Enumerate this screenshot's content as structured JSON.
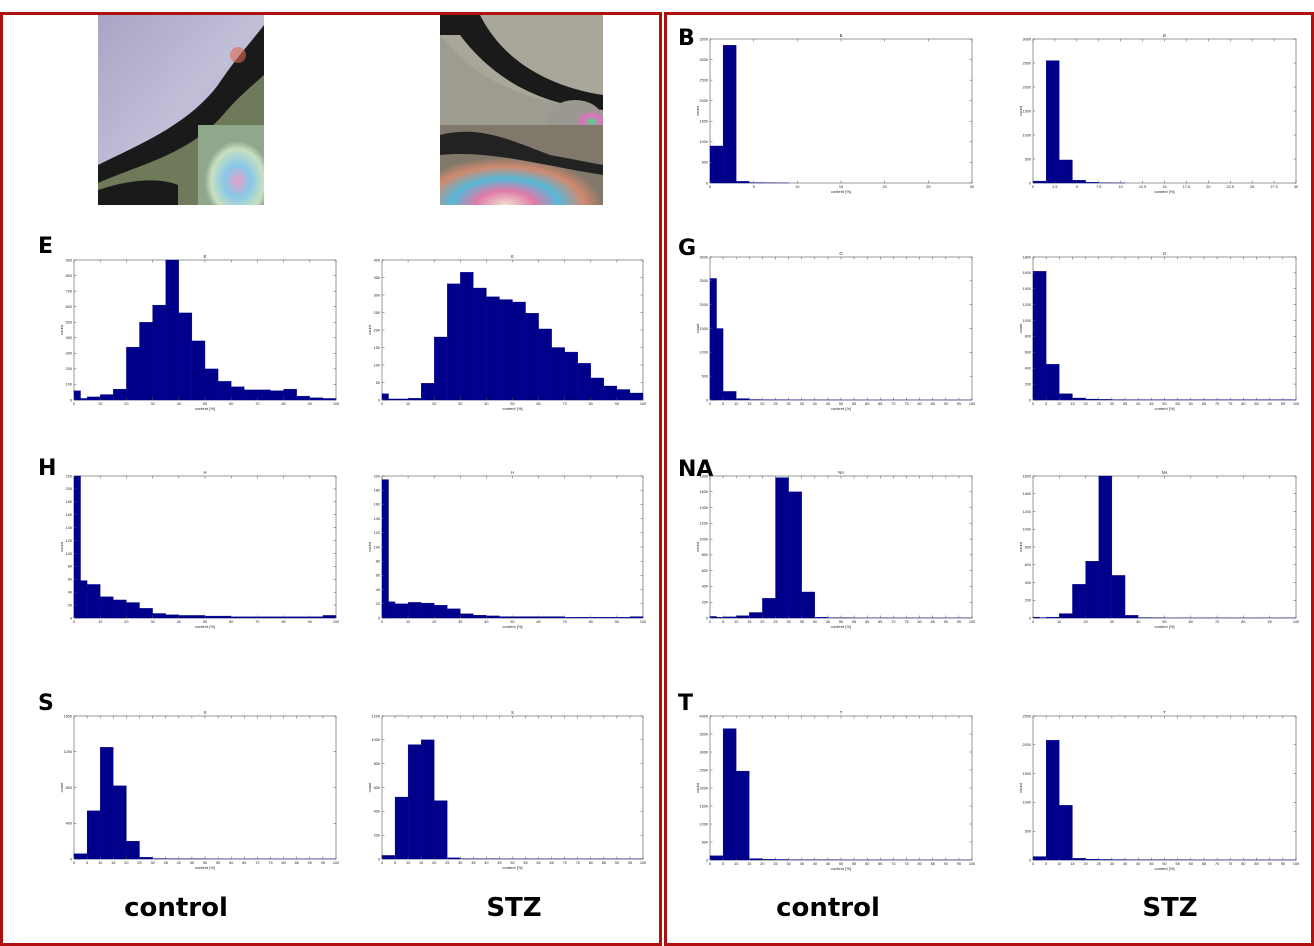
{
  "colors": {
    "bar": "#00008b",
    "frame": "#b01010"
  },
  "column_labels": {
    "left_control": "control",
    "left_stz": "STZ",
    "right_control": "control",
    "right_stz": "STZ"
  },
  "panel_letters": [
    "B",
    "E",
    "G",
    "H",
    "NA",
    "S",
    "T"
  ],
  "chart_data": [
    {
      "id": "E-control",
      "letter": "E",
      "type": "bar",
      "title": "E",
      "xlabel": "content [%]",
      "ylabel": "count",
      "xlim": [
        0,
        100
      ],
      "xticks": [
        0,
        10,
        20,
        30,
        40,
        50,
        60,
        70,
        80,
        90,
        100
      ],
      "ylim": [
        0,
        900
      ],
      "yticks": [
        0,
        100,
        200,
        300,
        400,
        500,
        600,
        700,
        800,
        900
      ],
      "bin_width": 5,
      "bins": [
        0,
        2.5,
        7.5,
        12.5,
        17.5,
        22.5,
        27.5,
        32.5,
        37.5,
        42.5,
        47.5,
        52.5,
        57.5,
        62.5,
        67.5,
        72.5,
        77.5,
        82.5,
        87.5,
        92.5,
        97.5
      ],
      "values": [
        60,
        10,
        20,
        35,
        70,
        340,
        500,
        610,
        900,
        560,
        380,
        200,
        120,
        85,
        65,
        65,
        60,
        70,
        25,
        15,
        10
      ]
    },
    {
      "id": "E-stz",
      "letter": "E",
      "type": "bar",
      "title": "E",
      "xlabel": "content [%]",
      "ylabel": "count",
      "xlim": [
        0,
        100
      ],
      "xticks": [
        0,
        10,
        20,
        30,
        40,
        50,
        60,
        70,
        80,
        90,
        100
      ],
      "ylim": [
        0,
        400
      ],
      "yticks": [
        0,
        50,
        100,
        150,
        200,
        250,
        300,
        350,
        400
      ],
      "bin_width": 5,
      "bins": [
        0,
        2.5,
        7.5,
        12.5,
        17.5,
        22.5,
        27.5,
        32.5,
        37.5,
        42.5,
        47.5,
        52.5,
        57.5,
        62.5,
        67.5,
        72.5,
        77.5,
        82.5,
        87.5,
        92.5,
        97.5
      ],
      "values": [
        18,
        3,
        3,
        5,
        48,
        180,
        332,
        365,
        320,
        295,
        287,
        280,
        248,
        203,
        150,
        137,
        105,
        63,
        40,
        30,
        20
      ]
    },
    {
      "id": "H-control",
      "letter": "H",
      "type": "bar",
      "title": "H",
      "xlabel": "content [%]",
      "ylabel": "count",
      "xlim": [
        0,
        100
      ],
      "xticks": [
        0,
        10,
        20,
        30,
        40,
        50,
        60,
        70,
        80,
        90,
        100
      ],
      "ylim": [
        0,
        220
      ],
      "yticks": [
        0,
        20,
        40,
        60,
        80,
        100,
        120,
        140,
        160,
        180,
        200,
        220
      ],
      "bin_width": 5,
      "bins": [
        0,
        2.5,
        7.5,
        12.5,
        17.5,
        22.5,
        27.5,
        32.5,
        37.5,
        42.5,
        47.5,
        52.5,
        57.5,
        62.5,
        67.5,
        72.5,
        77.5,
        82.5,
        87.5,
        92.5,
        97.5
      ],
      "values": [
        220,
        58,
        52,
        33,
        28,
        24,
        15,
        7,
        5,
        4,
        4,
        3,
        3,
        2,
        2,
        2,
        2,
        2,
        2,
        2,
        4
      ]
    },
    {
      "id": "H-stz",
      "letter": "H",
      "type": "bar",
      "title": "H",
      "xlabel": "content [%]",
      "ylabel": "count",
      "xlim": [
        0,
        100
      ],
      "xticks": [
        0,
        10,
        20,
        30,
        40,
        50,
        60,
        70,
        80,
        90,
        100
      ],
      "ylim": [
        0,
        200
      ],
      "yticks": [
        0,
        20,
        40,
        60,
        80,
        100,
        120,
        140,
        160,
        180,
        200
      ],
      "bin_width": 5,
      "bins": [
        0,
        2.5,
        7.5,
        12.5,
        17.5,
        22.5,
        27.5,
        32.5,
        37.5,
        42.5,
        47.5,
        52.5,
        57.5,
        62.5,
        67.5,
        72.5,
        77.5,
        82.5,
        87.5,
        92.5,
        97.5
      ],
      "values": [
        195,
        23,
        20,
        22,
        21,
        18,
        13,
        6,
        4,
        3,
        2,
        2,
        2,
        2,
        2,
        1,
        1,
        1,
        1,
        1,
        2
      ]
    },
    {
      "id": "S-control",
      "letter": "S",
      "type": "bar",
      "title": "S",
      "xlabel": "content [%]",
      "ylabel": "count",
      "xlim": [
        0,
        100
      ],
      "xticks": [
        0,
        5,
        10,
        15,
        20,
        25,
        30,
        35,
        40,
        45,
        50,
        55,
        60,
        65,
        70,
        75,
        80,
        85,
        90,
        95,
        100
      ],
      "ylim": [
        0,
        1600
      ],
      "yticks": [
        0,
        400,
        800,
        1200,
        1600
      ],
      "bin_width": 5,
      "bins": [
        0,
        2.5,
        7.5,
        12.5,
        17.5,
        22.5,
        27.5,
        32.5,
        37.5,
        42.5,
        47.5,
        52.5,
        57.5,
        62.5,
        67.5,
        72.5,
        77.5,
        82.5,
        87.5,
        92.5,
        97.5
      ],
      "values": [
        40,
        60,
        540,
        1250,
        820,
        200,
        20,
        5,
        3,
        2,
        2,
        1,
        1,
        1,
        1,
        1,
        1,
        1,
        1,
        1,
        1
      ]
    },
    {
      "id": "S-stz",
      "letter": "S",
      "type": "bar",
      "title": "S",
      "xlabel": "content [%]",
      "ylabel": "count",
      "xlim": [
        0,
        100
      ],
      "xticks": [
        0,
        5,
        10,
        15,
        20,
        25,
        30,
        35,
        40,
        45,
        50,
        55,
        60,
        65,
        70,
        75,
        80,
        85,
        90,
        95,
        100
      ],
      "ylim": [
        0,
        1200
      ],
      "yticks": [
        0,
        200,
        400,
        600,
        800,
        1000,
        1200
      ],
      "bin_width": 5,
      "bins": [
        0,
        2.5,
        7.5,
        12.5,
        17.5,
        22.5,
        27.5,
        32.5,
        37.5,
        42.5,
        47.5,
        52.5,
        57.5,
        62.5,
        67.5,
        72.5,
        77.5,
        82.5,
        87.5,
        92.5,
        97.5
      ],
      "values": [
        20,
        30,
        520,
        960,
        1000,
        490,
        10,
        3,
        2,
        2,
        1,
        1,
        1,
        1,
        1,
        1,
        1,
        1,
        1,
        1,
        1
      ]
    },
    {
      "id": "B-control",
      "letter": "B",
      "type": "bar",
      "title": "B",
      "xlabel": "content [%]",
      "ylabel": "count",
      "xlim": [
        0,
        30
      ],
      "xticks": [
        0,
        5,
        10,
        15,
        20,
        25,
        30
      ],
      "ylim": [
        0,
        3500
      ],
      "yticks": [
        0,
        500,
        1000,
        1500,
        2000,
        2500,
        3000,
        3500
      ],
      "bin_width": 1.5,
      "bins": [
        0.75,
        2.25,
        3.75,
        5.25,
        6.75,
        8.25
      ],
      "values": [
        900,
        3350,
        40,
        10,
        5,
        3
      ]
    },
    {
      "id": "B-stz",
      "letter": "B",
      "type": "bar",
      "title": "B",
      "xlabel": "content [%]",
      "ylabel": "count",
      "xlim": [
        0,
        30
      ],
      "xticks": [
        0,
        2.5,
        5,
        7.5,
        10,
        12.5,
        15,
        17.5,
        20,
        22.5,
        25,
        27.5,
        30
      ],
      "ylim": [
        0,
        3000
      ],
      "yticks": [
        0,
        500,
        1000,
        1500,
        2000,
        2500,
        3000
      ],
      "bin_width": 1.5,
      "bins": [
        0.75,
        2.25,
        3.75,
        5.25,
        6.75,
        8.25,
        9.75
      ],
      "values": [
        40,
        2550,
        480,
        60,
        15,
        5,
        3
      ]
    },
    {
      "id": "G-control",
      "letter": "G",
      "type": "bar",
      "title": "G",
      "xlabel": "content [%]",
      "ylabel": "count",
      "xlim": [
        0,
        100
      ],
      "xticks": [
        0,
        5,
        10,
        15,
        20,
        25,
        30,
        35,
        40,
        45,
        50,
        55,
        60,
        65,
        70,
        75,
        80,
        85,
        90,
        95,
        100
      ],
      "ylim": [
        0,
        3000
      ],
      "yticks": [
        0,
        500,
        1000,
        1500,
        2000,
        2500,
        3000
      ],
      "bin_width": 5,
      "bins": [
        0,
        2.5,
        7.5,
        12.5,
        17.5,
        22.5,
        27.5,
        32.5,
        37.5,
        42.5,
        47.5,
        52.5,
        57.5,
        62.5,
        67.5,
        72.5,
        77.5,
        82.5,
        87.5,
        92.5,
        97.5
      ],
      "values": [
        2550,
        1500,
        180,
        30,
        10,
        5,
        5,
        3,
        2,
        2,
        2,
        1,
        1,
        1,
        1,
        1,
        1,
        1,
        1,
        1,
        1
      ]
    },
    {
      "id": "G-stz",
      "letter": "G",
      "type": "bar",
      "title": "G",
      "xlabel": "content [%]",
      "ylabel": "count",
      "xlim": [
        0,
        100
      ],
      "xticks": [
        0,
        5,
        10,
        15,
        20,
        25,
        30,
        35,
        40,
        45,
        50,
        55,
        60,
        65,
        70,
        75,
        80,
        85,
        90,
        95,
        100
      ],
      "ylim": [
        0,
        1800
      ],
      "yticks": [
        0,
        200,
        400,
        600,
        800,
        1000,
        1200,
        1400,
        1600,
        1800
      ],
      "bin_width": 5,
      "bins": [
        0,
        2.5,
        7.5,
        12.5,
        17.5,
        22.5,
        27.5,
        32.5,
        37.5,
        42.5,
        47.5,
        52.5,
        57.5,
        62.5,
        67.5,
        72.5,
        77.5,
        82.5,
        87.5,
        92.5,
        97.5
      ],
      "values": [
        850,
        1620,
        450,
        80,
        25,
        12,
        8,
        5,
        4,
        3,
        3,
        2,
        2,
        2,
        2,
        2,
        2,
        2,
        2,
        2,
        2
      ]
    },
    {
      "id": "NA-control",
      "letter": "NA",
      "type": "bar",
      "title": "NA",
      "xlabel": "content [%]",
      "ylabel": "count",
      "xlim": [
        0,
        100
      ],
      "xticks": [
        0,
        5,
        10,
        15,
        20,
        25,
        30,
        35,
        40,
        45,
        50,
        55,
        60,
        65,
        70,
        75,
        80,
        85,
        90,
        95,
        100
      ],
      "ylim": [
        0,
        1800
      ],
      "yticks": [
        0,
        200,
        400,
        600,
        800,
        1000,
        1200,
        1400,
        1600,
        1800
      ],
      "bin_width": 5,
      "bins": [
        0,
        2.5,
        7.5,
        12.5,
        17.5,
        22.5,
        27.5,
        32.5,
        37.5,
        42.5,
        47.5,
        52.5,
        57.5,
        62.5,
        67.5,
        72.5,
        77.5,
        82.5,
        87.5,
        92.5,
        97.5
      ],
      "values": [
        20,
        10,
        15,
        30,
        70,
        250,
        1780,
        1600,
        330,
        10,
        3,
        2,
        1,
        1,
        1,
        1,
        1,
        1,
        1,
        1,
        1
      ]
    },
    {
      "id": "NA-stz",
      "letter": "NA",
      "type": "bar",
      "title": "NA",
      "xlabel": "content [%]",
      "ylabel": "count",
      "xlim": [
        0,
        100
      ],
      "xticks": [
        0,
        10,
        20,
        30,
        40,
        50,
        60,
        70,
        80,
        90,
        100
      ],
      "ylim": [
        0,
        1600
      ],
      "yticks": [
        0,
        200,
        400,
        600,
        800,
        1000,
        1200,
        1400,
        1600
      ],
      "bin_width": 5,
      "bins": [
        0,
        2.5,
        7.5,
        12.5,
        17.5,
        22.5,
        27.5,
        32.5,
        37.5,
        42.5,
        47.5,
        52.5,
        57.5,
        62.5,
        67.5,
        72.5,
        77.5,
        82.5,
        87.5,
        92.5,
        97.5
      ],
      "values": [
        10,
        5,
        10,
        50,
        380,
        640,
        1600,
        480,
        30,
        5,
        2,
        1,
        1,
        1,
        1,
        1,
        1,
        1,
        1,
        1,
        1
      ]
    },
    {
      "id": "T-control",
      "letter": "T",
      "type": "bar",
      "title": "T",
      "xlabel": "content [%]",
      "ylabel": "count",
      "xlim": [
        0,
        100
      ],
      "xticks": [
        0,
        5,
        10,
        15,
        20,
        25,
        30,
        35,
        40,
        45,
        50,
        55,
        60,
        65,
        70,
        75,
        80,
        85,
        90,
        95,
        100
      ],
      "ylim": [
        0,
        4000
      ],
      "yticks": [
        0,
        500,
        1000,
        1500,
        2000,
        2500,
        3000,
        3500,
        4000
      ],
      "bin_width": 5,
      "bins": [
        0,
        2.5,
        7.5,
        12.5,
        17.5,
        22.5,
        27.5,
        32.5,
        37.5,
        42.5,
        47.5,
        52.5,
        57.5,
        62.5,
        67.5,
        72.5,
        77.5,
        82.5,
        87.5,
        92.5,
        97.5
      ],
      "values": [
        40,
        120,
        3650,
        2470,
        40,
        20,
        15,
        10,
        8,
        6,
        5,
        4,
        3,
        3,
        3,
        2,
        2,
        2,
        2,
        2,
        2
      ]
    },
    {
      "id": "T-stz",
      "letter": "T",
      "type": "bar",
      "title": "T",
      "xlabel": "content [%]",
      "ylabel": "count",
      "xlim": [
        0,
        100
      ],
      "xticks": [
        0,
        5,
        10,
        15,
        20,
        25,
        30,
        35,
        40,
        45,
        50,
        55,
        60,
        65,
        70,
        75,
        80,
        85,
        90,
        95,
        100
      ],
      "ylim": [
        0,
        2500
      ],
      "yticks": [
        0,
        500,
        1000,
        1500,
        2000,
        2500
      ],
      "bin_width": 5,
      "bins": [
        0,
        2.5,
        7.5,
        12.5,
        17.5,
        22.5,
        27.5,
        32.5,
        37.5,
        42.5,
        47.5,
        52.5,
        57.5,
        62.5,
        67.5,
        72.5,
        77.5,
        82.5,
        87.5,
        92.5,
        97.5
      ],
      "values": [
        30,
        60,
        2080,
        950,
        30,
        15,
        10,
        8,
        6,
        5,
        4,
        3,
        3,
        2,
        2,
        2,
        2,
        2,
        2,
        2,
        2
      ]
    }
  ]
}
